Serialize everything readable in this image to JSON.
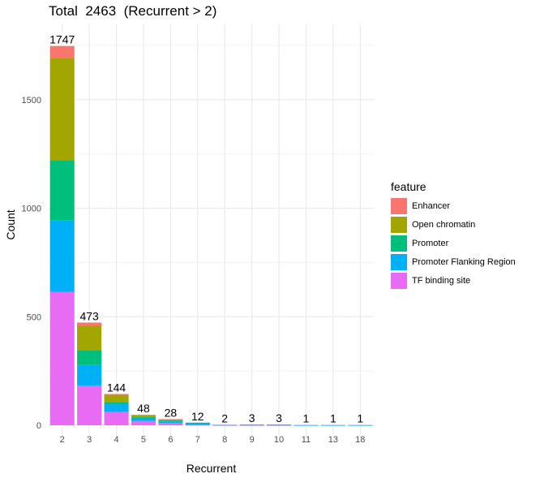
{
  "chart_data": {
    "type": "bar",
    "stacked": true,
    "title": "Total  2463  (Recurrent > 2)",
    "xlabel": "Recurrent",
    "ylabel": "Count",
    "ylim": [
      0,
      1800
    ],
    "yticks": [
      0,
      500,
      1000,
      1500
    ],
    "grid": true,
    "legend": {
      "title": "feature",
      "placement": "right"
    },
    "categories": [
      "2",
      "3",
      "4",
      "5",
      "6",
      "7",
      "8",
      "9",
      "10",
      "11",
      "13",
      "18"
    ],
    "totals": [
      1747,
      473,
      144,
      48,
      28,
      12,
      2,
      3,
      3,
      1,
      1,
      1
    ],
    "series": [
      {
        "name": "TF binding site",
        "color": "#E76BF3",
        "values": [
          615,
          183,
          62,
          20,
          10,
          2,
          1,
          1,
          1,
          0,
          0,
          0
        ]
      },
      {
        "name": "Promoter Flanking Region",
        "color": "#00B0F6",
        "values": [
          328,
          95,
          35,
          14,
          6,
          8,
          1,
          1,
          1,
          1,
          1,
          1
        ]
      },
      {
        "name": "Promoter",
        "color": "#00BF7D",
        "values": [
          278,
          66,
          10,
          6,
          6,
          2,
          0,
          1,
          1,
          0,
          0,
          0
        ]
      },
      {
        "name": "Open chromatin",
        "color": "#A3A500",
        "values": [
          472,
          114,
          33,
          6,
          5,
          0,
          0,
          0,
          0,
          0,
          0,
          0
        ]
      },
      {
        "name": "Enhancer",
        "color": "#F8766D",
        "values": [
          54,
          15,
          4,
          2,
          1,
          0,
          0,
          0,
          0,
          0,
          0,
          0
        ]
      }
    ]
  }
}
